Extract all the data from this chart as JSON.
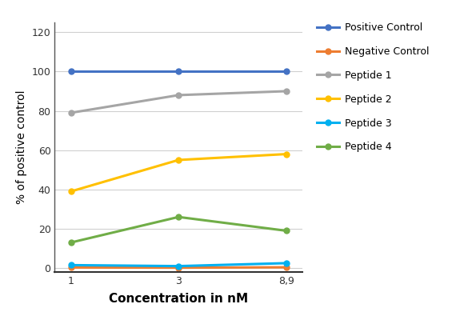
{
  "x_labels": [
    "1",
    "3",
    "8,9"
  ],
  "x_positions": [
    0,
    1,
    2
  ],
  "series": [
    {
      "label": "Positive Control",
      "color": "#4472C4",
      "marker": "o",
      "values": [
        100,
        100,
        100
      ],
      "linewidth": 2.2
    },
    {
      "label": "Negative Control",
      "color": "#ED7D31",
      "marker": "o",
      "values": [
        0.3,
        0.2,
        0.4
      ],
      "linewidth": 2.2
    },
    {
      "label": "Peptide 1",
      "color": "#A5A5A5",
      "marker": "o",
      "values": [
        79,
        88,
        90
      ],
      "linewidth": 2.2
    },
    {
      "label": "Peptide 2",
      "color": "#FFC000",
      "marker": "o",
      "values": [
        39,
        55,
        58
      ],
      "linewidth": 2.2
    },
    {
      "label": "Peptide 3",
      "color": "#00B0F0",
      "marker": "o",
      "values": [
        1.5,
        1.0,
        2.5
      ],
      "linewidth": 2.2
    },
    {
      "label": "Peptide 4",
      "color": "#70AD47",
      "marker": "o",
      "values": [
        13,
        26,
        19
      ],
      "linewidth": 2.2
    }
  ],
  "ylabel": "% of positive control",
  "xlabel": "Concentration in nM",
  "ylim": [
    -2,
    125
  ],
  "yticks": [
    0,
    20,
    40,
    60,
    80,
    100,
    120
  ],
  "grid_color": "#D0D0D0",
  "background_color": "#FFFFFF",
  "legend_fontsize": 9,
  "axis_fontsize": 10,
  "tick_fontsize": 9,
  "xlabel_fontsize": 11
}
